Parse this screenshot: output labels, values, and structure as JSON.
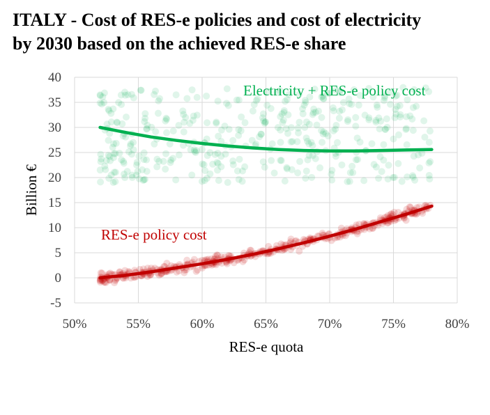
{
  "chart_data": {
    "type": "scatter",
    "title": "ITALY - Cost of RES-e policies and cost of electricity by 2030 based on the achieved RES-e share",
    "title_lines": [
      "ITALY - Cost of RES-e policies and cost of electricity",
      "by 2030 based on the achieved RES-e share"
    ],
    "xlabel": "RES-e quota",
    "ylabel": "Billion €",
    "xlim": [
      50,
      80
    ],
    "ylim": [
      -5,
      40
    ],
    "x_ticks": [
      50,
      55,
      60,
      65,
      70,
      75,
      80
    ],
    "x_tick_labels": [
      "50%",
      "55%",
      "60%",
      "65%",
      "70%",
      "75%",
      "80%"
    ],
    "y_ticks": [
      -5,
      0,
      5,
      10,
      15,
      20,
      25,
      30,
      35,
      40
    ],
    "y_tick_labels": [
      "-5",
      "0",
      "5",
      "10",
      "15",
      "20",
      "25",
      "30",
      "35",
      "40"
    ],
    "grid": true,
    "series": [
      {
        "name": "Electricity + RES-e policy cost",
        "color": "#00b050",
        "scatter_x_range": [
          52,
          78
        ],
        "scatter_y_range": [
          19,
          38
        ],
        "scatter_opacity": 0.12,
        "trend_x": [
          52,
          54,
          56,
          58,
          60,
          62,
          64,
          66,
          68,
          70,
          72,
          74,
          76,
          78
        ],
        "trend_y": [
          30.0,
          29.0,
          28.1,
          27.4,
          26.8,
          26.3,
          25.9,
          25.6,
          25.4,
          25.3,
          25.3,
          25.4,
          25.5,
          25.6
        ]
      },
      {
        "name": "RES-e policy cost",
        "color": "#c00000",
        "scatter_x_range": [
          52,
          78
        ],
        "scatter_noise": 1.2,
        "scatter_opacity": 0.15,
        "trend_x": [
          52,
          54,
          56,
          58,
          60,
          62,
          64,
          66,
          68,
          70,
          72,
          74,
          76,
          78
        ],
        "trend_y": [
          0.0,
          0.5,
          1.2,
          2.0,
          2.8,
          3.7,
          4.7,
          5.8,
          7.0,
          8.3,
          9.7,
          11.2,
          12.7,
          14.3
        ]
      }
    ]
  }
}
